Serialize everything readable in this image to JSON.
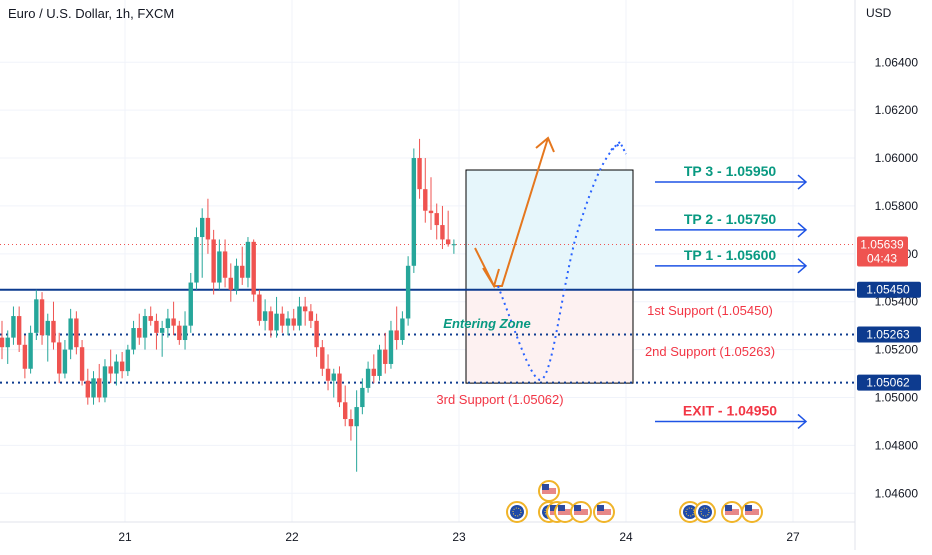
{
  "header": {
    "symbol_title": "Euro / U.S. Dollar, 1h, FXCM",
    "currency": "USD"
  },
  "colors": {
    "bull": "#26a69a",
    "bear": "#ef5350",
    "grid": "#f0f3fa",
    "axis_text": "#131722",
    "price_tag": "#ef5350",
    "level_line": "#0d3b8f",
    "level_tag_bg": "#0d3b8f",
    "tp_text": "#089981",
    "tp_arrow": "#1e53e5",
    "exit_text": "#f23645",
    "support_text": "#f23645",
    "zone_text": "#089981",
    "orange_arrow": "#e5771e",
    "dotted_path": "#2962ff",
    "upper_box_fill": "#e6f6fb",
    "lower_box_fill": "#fdf1f1"
  },
  "chart_data": {
    "type": "candlestick",
    "title": "Euro / U.S. Dollar, 1h, FXCM",
    "ylabel": "USD",
    "ylim": [
      1.0448,
      1.0666
    ],
    "y_ticks": [
      1.046,
      1.048,
      1.05,
      1.052,
      1.054,
      1.056,
      1.058,
      1.06,
      1.062,
      1.064
    ],
    "y_tick_labels": [
      "1.04600",
      "1.04800",
      "1.05000",
      "1.05200",
      "1.05400",
      "1.05600",
      "1.05800",
      "1.06000",
      "1.06200",
      "1.06400"
    ],
    "x_ticks": [
      21,
      22,
      23,
      24,
      27
    ],
    "x_tick_labels": [
      "21",
      "22",
      "23",
      "24",
      "27"
    ],
    "current_price": {
      "value": 1.05639,
      "label": "1.05639",
      "countdown": "04:43"
    },
    "candles": [
      [
        1.0525,
        1.0532,
        1.0516,
        1.0521
      ],
      [
        1.0521,
        1.0528,
        1.0514,
        1.0525
      ],
      [
        1.0525,
        1.0538,
        1.0522,
        1.0534
      ],
      [
        1.0534,
        1.0538,
        1.0519,
        1.0522
      ],
      [
        1.0522,
        1.0526,
        1.0508,
        1.0512
      ],
      [
        1.0512,
        1.053,
        1.051,
        1.0527
      ],
      [
        1.0527,
        1.0545,
        1.0524,
        1.0541
      ],
      [
        1.0541,
        1.0544,
        1.0522,
        1.0526
      ],
      [
        1.0526,
        1.0535,
        1.0515,
        1.0532
      ],
      [
        1.0532,
        1.054,
        1.052,
        1.0523
      ],
      [
        1.0523,
        1.0527,
        1.0506,
        1.051
      ],
      [
        1.051,
        1.0524,
        1.0508,
        1.052
      ],
      [
        1.052,
        1.0537,
        1.0516,
        1.0533
      ],
      [
        1.0533,
        1.0536,
        1.0518,
        1.0521
      ],
      [
        1.0521,
        1.0524,
        1.0505,
        1.0507
      ],
      [
        1.0507,
        1.0512,
        1.0497,
        1.05
      ],
      [
        1.05,
        1.0511,
        1.0497,
        1.0508
      ],
      [
        1.0508,
        1.0514,
        1.0498,
        1.05
      ],
      [
        1.05,
        1.0516,
        1.0498,
        1.0513
      ],
      [
        1.0513,
        1.052,
        1.0506,
        1.051
      ],
      [
        1.051,
        1.0518,
        1.0505,
        1.0515
      ],
      [
        1.0515,
        1.0519,
        1.0508,
        1.0511
      ],
      [
        1.0511,
        1.0522,
        1.0509,
        1.052
      ],
      [
        1.052,
        1.0532,
        1.0518,
        1.0529
      ],
      [
        1.0529,
        1.0535,
        1.0522,
        1.0525
      ],
      [
        1.0525,
        1.0537,
        1.052,
        1.0534
      ],
      [
        1.0534,
        1.0538,
        1.053,
        1.0532
      ],
      [
        1.0532,
        1.0535,
        1.052,
        1.0527
      ],
      [
        1.0527,
        1.0532,
        1.0517,
        1.0529
      ],
      [
        1.0529,
        1.0537,
        1.0525,
        1.0533
      ],
      [
        1.0533,
        1.054,
        1.0526,
        1.053
      ],
      [
        1.053,
        1.0532,
        1.0522,
        1.0524
      ],
      [
        1.0524,
        1.0536,
        1.052,
        1.053
      ],
      [
        1.053,
        1.0552,
        1.0527,
        1.0548
      ],
      [
        1.0548,
        1.0571,
        1.0545,
        1.0567
      ],
      [
        1.0567,
        1.0579,
        1.055,
        1.0575
      ],
      [
        1.0575,
        1.0583,
        1.056,
        1.0566
      ],
      [
        1.0566,
        1.057,
        1.0543,
        1.0548
      ],
      [
        1.0548,
        1.0566,
        1.0545,
        1.0561
      ],
      [
        1.0561,
        1.0566,
        1.0546,
        1.055
      ],
      [
        1.055,
        1.0556,
        1.054,
        1.0545
      ],
      [
        1.0545,
        1.0558,
        1.0543,
        1.0555
      ],
      [
        1.0555,
        1.0563,
        1.0547,
        1.055
      ],
      [
        1.055,
        1.0567,
        1.0546,
        1.0565
      ],
      [
        1.0565,
        1.0566,
        1.054,
        1.0543
      ],
      [
        1.0543,
        1.0545,
        1.053,
        1.0532
      ],
      [
        1.0532,
        1.0541,
        1.0528,
        1.0536
      ],
      [
        1.0536,
        1.0538,
        1.0525,
        1.0528
      ],
      [
        1.0528,
        1.0542,
        1.0525,
        1.0535
      ],
      [
        1.0535,
        1.0538,
        1.0527,
        1.053
      ],
      [
        1.053,
        1.0536,
        1.0526,
        1.0533
      ],
      [
        1.0533,
        1.0537,
        1.0528,
        1.053
      ],
      [
        1.053,
        1.0542,
        1.0528,
        1.0538
      ],
      [
        1.0538,
        1.0542,
        1.053,
        1.0536
      ],
      [
        1.0536,
        1.0539,
        1.0529,
        1.0532
      ],
      [
        1.0532,
        1.0535,
        1.0517,
        1.0521
      ],
      [
        1.0521,
        1.0524,
        1.0509,
        1.0512
      ],
      [
        1.0512,
        1.0518,
        1.0503,
        1.0507
      ],
      [
        1.0507,
        1.0512,
        1.05,
        1.051
      ],
      [
        1.051,
        1.0513,
        1.0496,
        1.0498
      ],
      [
        1.0498,
        1.0505,
        1.0488,
        1.0491
      ],
      [
        1.0491,
        1.0495,
        1.0482,
        1.0488
      ],
      [
        1.0488,
        1.0503,
        1.0469,
        1.0496
      ],
      [
        1.0496,
        1.0508,
        1.0493,
        1.0504
      ],
      [
        1.0504,
        1.0515,
        1.0502,
        1.0512
      ],
      [
        1.0512,
        1.0518,
        1.0506,
        1.0509
      ],
      [
        1.0509,
        1.0522,
        1.0507,
        1.052
      ],
      [
        1.052,
        1.0527,
        1.051,
        1.0514
      ],
      [
        1.0514,
        1.0532,
        1.0512,
        1.0528
      ],
      [
        1.0528,
        1.0538,
        1.052,
        1.0524
      ],
      [
        1.0524,
        1.0536,
        1.0522,
        1.0533
      ],
      [
        1.0533,
        1.0559,
        1.053,
        1.0555
      ],
      [
        1.0555,
        1.0604,
        1.0552,
        1.06
      ],
      [
        1.06,
        1.0608,
        1.0583,
        1.0587
      ],
      [
        1.0587,
        1.06,
        1.0573,
        1.0578
      ],
      [
        1.0578,
        1.0592,
        1.057,
        1.0577
      ],
      [
        1.0577,
        1.0581,
        1.0566,
        1.0572
      ],
      [
        1.0572,
        1.058,
        1.0562,
        1.0566
      ],
      [
        1.0566,
        1.0578,
        1.0563,
        1.0564
      ],
      [
        1.0564,
        1.0566,
        1.056,
        1.0564
      ]
    ],
    "levels": [
      {
        "name": "Resistance / entry line",
        "value": 1.0545,
        "style": "solid",
        "tag": "1.05450"
      },
      {
        "name": "2nd Support",
        "value": 1.05263,
        "style": "dotted",
        "tag": "1.05263"
      },
      {
        "name": "3rd Support",
        "value": 1.05062,
        "style": "dotted",
        "tag": "1.05062"
      }
    ],
    "annotations": {
      "targets": [
        {
          "label": "TP 3 - 1.05950",
          "value": 1.0595,
          "kind": "tp"
        },
        {
          "label": "TP 2 - 1.05750",
          "value": 1.0575,
          "kind": "tp"
        },
        {
          "label": "TP 1 - 1.05600",
          "value": 1.056,
          "kind": "tp"
        },
        {
          "label": "EXIT - 1.04950",
          "value": 1.0495,
          "kind": "exit"
        }
      ],
      "supports": [
        {
          "label": "1st Support (1.05450)"
        },
        {
          "label": "2nd Support (1.05263)"
        },
        {
          "label": "3rd Support (1.05062)"
        }
      ],
      "zone_label": "Entering Zone",
      "box": {
        "top": 1.0595,
        "mid": 1.0545,
        "bottom": 1.0506
      }
    },
    "event_icons": {
      "group_near_23": [
        "eu-flag",
        "eu-flag",
        "us-flag",
        "us-flag",
        "us-flag",
        "us-flag"
      ],
      "group_near_24": [
        "eu-flag",
        "eu-flag",
        "us-flag",
        "us-flag"
      ],
      "stacked_above": [
        "us-flag"
      ]
    }
  }
}
